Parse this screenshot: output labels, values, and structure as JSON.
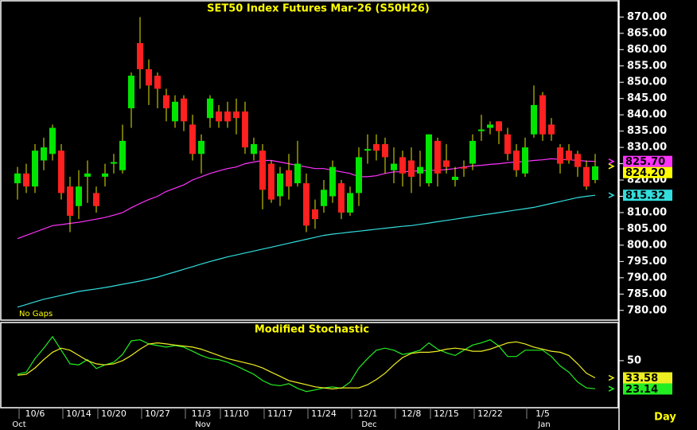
{
  "chart_data": [
    {
      "type": "candlestick",
      "title": "SET50 Index Futures Mar-26 (S50H26)",
      "annotation": "No Gaps",
      "categories": [
        null,
        null,
        "10/6",
        null,
        null,
        null,
        null,
        "10/14",
        null,
        null,
        null,
        "10/20",
        null,
        null,
        null,
        null,
        "10/27",
        null,
        null,
        null,
        null,
        "11/3",
        null,
        null,
        null,
        "11/10",
        null,
        null,
        null,
        null,
        "11/17",
        null,
        null,
        null,
        null,
        "11/24",
        null,
        null,
        null,
        null,
        "12/1",
        null,
        null,
        null,
        null,
        "12/8",
        null,
        null,
        null,
        "12/15",
        null,
        null,
        null,
        null,
        "12/22",
        null,
        null,
        null,
        null,
        null,
        "1/5",
        null,
        null,
        null,
        null,
        null,
        null
      ],
      "months": [
        "Oct",
        null,
        null,
        null,
        null,
        null,
        null,
        null,
        null,
        null,
        null,
        null,
        null,
        null,
        null,
        null,
        null,
        null,
        null,
        null,
        null,
        "Nov",
        null,
        null,
        null,
        null,
        null,
        null,
        null,
        null,
        null,
        null,
        null,
        null,
        null,
        null,
        null,
        null,
        null,
        null,
        "Dec",
        null,
        null,
        null,
        null,
        null,
        null,
        null,
        null,
        null,
        null,
        null,
        null,
        null,
        null,
        null,
        null,
        null,
        null,
        null,
        "Jan",
        null,
        null,
        null,
        null,
        null,
        null
      ],
      "open": [
        819,
        822,
        818,
        826,
        828,
        829,
        818,
        812,
        821,
        816,
        821,
        825,
        823,
        842,
        862,
        854,
        852,
        846,
        838,
        845,
        837,
        828,
        839,
        841,
        841,
        841,
        841,
        828,
        829,
        825,
        815,
        823,
        819,
        819,
        811,
        812,
        815,
        819,
        810,
        816,
        829,
        831,
        831,
        823,
        827,
        826,
        822,
        819,
        832,
        826,
        820,
        824,
        825,
        835,
        836,
        838,
        834,
        829,
        822,
        834,
        846,
        837,
        830,
        829,
        828,
        824,
        820
      ],
      "high": [
        824,
        825,
        831,
        833,
        837,
        831,
        821,
        823,
        826,
        818,
        825,
        828,
        837,
        853,
        870,
        857,
        853,
        848,
        846,
        846,
        840,
        834,
        846,
        843,
        844,
        845,
        844,
        833,
        831,
        826,
        824,
        828,
        832,
        822,
        814,
        820,
        826,
        820,
        818,
        830,
        834,
        834,
        833,
        830,
        829,
        830,
        829,
        834,
        833,
        831,
        824,
        826,
        834,
        840,
        838,
        838,
        836,
        831,
        833,
        849,
        847,
        839,
        831,
        831,
        829,
        826,
        828
      ],
      "low": [
        814,
        816,
        816,
        823,
        826,
        814,
        804,
        808,
        813,
        810,
        818,
        822,
        822,
        836,
        848,
        843,
        842,
        838,
        836,
        835,
        826,
        822,
        836,
        836,
        836,
        834,
        828,
        826,
        811,
        813,
        812,
        814,
        818,
        804,
        805,
        810,
        813,
        808,
        809,
        812,
        825,
        826,
        822,
        819,
        818,
        816,
        818,
        818,
        818,
        822,
        818,
        821,
        823,
        832,
        834,
        831,
        826,
        821,
        821,
        833,
        832,
        832,
        822,
        825,
        821,
        817,
        819
      ],
      "close": [
        822,
        818,
        829,
        830,
        836,
        816,
        809,
        818,
        822,
        812,
        822,
        825.5,
        832,
        852,
        854,
        849,
        848,
        842,
        844,
        838,
        828,
        832,
        845,
        838,
        838,
        839,
        830,
        831,
        817,
        814,
        822,
        818,
        825,
        806,
        808,
        817,
        824,
        810,
        816,
        827,
        829.5,
        829,
        827,
        825,
        822,
        821,
        824,
        834,
        822,
        824,
        821,
        823.5,
        832,
        835.5,
        837,
        835,
        828,
        823,
        830,
        843,
        834,
        834,
        825,
        826,
        824,
        818,
        824.2
      ],
      "last_label": "824.20",
      "last_label_color": "#ffff00",
      "up_color": "#00e600",
      "down_color": "#ff2020",
      "wick_color": "#e6e600",
      "series": [
        {
          "color": "#ff33ff",
          "last_label": "825.70",
          "values": [
            802,
            803,
            804,
            805,
            806,
            806.3,
            806.7,
            807,
            807.5,
            808,
            808.5,
            809.2,
            810,
            811.5,
            812.8,
            814,
            815,
            816.5,
            817.5,
            818.5,
            820,
            821,
            822,
            822.8,
            823.5,
            824,
            825,
            825.5,
            826,
            826,
            825.5,
            825,
            824.5,
            824,
            823.5,
            823.5,
            823,
            822.5,
            822,
            821,
            821,
            821.3,
            822,
            822.5,
            822.5,
            822.7,
            822.8,
            823,
            823,
            823.2,
            823.5,
            824,
            824.3,
            824.5,
            824.8,
            825,
            825.3,
            825.5,
            825.7,
            826,
            826.2,
            826.5,
            826.3,
            826.2,
            826,
            825.8,
            825.7
          ]
        },
        {
          "color": "#33dddd",
          "last_label": "815.32",
          "values": [
            781,
            781.8,
            782.6,
            783.4,
            784,
            784.6,
            785.2,
            785.8,
            786.2,
            786.6,
            787,
            787.5,
            788,
            788.5,
            789,
            789.6,
            790.2,
            791,
            791.8,
            792.6,
            793.4,
            794.2,
            795,
            795.7,
            796.4,
            797,
            797.6,
            798.2,
            798.8,
            799.4,
            800,
            800.6,
            801.2,
            801.8,
            802.4,
            803,
            803.4,
            803.7,
            804,
            804.3,
            804.6,
            804.9,
            805.2,
            805.5,
            805.8,
            806,
            806.4,
            806.8,
            807.2,
            807.6,
            808,
            808.4,
            808.8,
            809.2,
            809.6,
            810,
            810.4,
            810.8,
            811.2,
            811.6,
            812.2,
            812.8,
            813.4,
            814,
            814.6,
            815,
            815.32
          ]
        }
      ],
      "ylim": [
        777.5,
        874
      ],
      "yticks": [
        {
          "value": 780,
          "label": "780.00"
        },
        {
          "value": 785,
          "label": "785.00"
        },
        {
          "value": 790,
          "label": "790.00"
        },
        {
          "value": 795,
          "label": "795.00"
        },
        {
          "value": 800,
          "label": "800.00"
        },
        {
          "value": 805,
          "label": "805.00"
        },
        {
          "value": 810,
          "label": "810.00"
        },
        {
          "value": 815,
          "label": "815.00"
        },
        {
          "value": 820,
          "label": "820.00"
        },
        {
          "value": 825,
          "label": "825.00"
        },
        {
          "value": 830,
          "label": "830.00"
        },
        {
          "value": 835,
          "label": "835.00"
        },
        {
          "value": 840,
          "label": "840.00"
        },
        {
          "value": 845,
          "label": "845.00"
        },
        {
          "value": 850,
          "label": "850.00"
        },
        {
          "value": 855,
          "label": "855.00"
        },
        {
          "value": 860,
          "label": "860.00"
        },
        {
          "value": 865,
          "label": "865.00"
        },
        {
          "value": 870,
          "label": "870.00"
        }
      ]
    },
    {
      "type": "line",
      "title": "Modified Stochastic",
      "x_label": "Day",
      "series": [
        {
          "color": "#22ee22",
          "last_label": "23.14",
          "values": [
            37,
            39,
            52,
            62,
            73,
            60,
            47,
            46,
            51,
            42.5,
            46,
            48.5,
            56,
            69,
            70,
            66,
            64.5,
            63,
            64.5,
            63,
            59,
            55,
            52,
            51,
            48.5,
            45,
            41,
            37,
            31,
            27,
            26,
            28,
            23.5,
            20.5,
            22,
            24,
            25,
            23.5,
            29.5,
            43,
            52,
            60,
            62,
            60,
            56,
            57.5,
            60,
            67,
            61,
            57.5,
            55,
            60,
            65,
            67,
            70,
            64,
            54,
            54,
            60,
            60,
            60,
            54,
            45,
            39,
            29.5,
            24,
            23.14
          ]
        },
        {
          "color": "#eeee22",
          "last_label": "33.58",
          "values": [
            36,
            37,
            43,
            51,
            58,
            62,
            60,
            55,
            50,
            47,
            46,
            47,
            50,
            55,
            61,
            66,
            67,
            66,
            65,
            64,
            63,
            61,
            58,
            55,
            52,
            50,
            48,
            46,
            43,
            39,
            35,
            31,
            29,
            27,
            25,
            24,
            23,
            24,
            24,
            24,
            27,
            32,
            38,
            46,
            53,
            57,
            58,
            58,
            59,
            61,
            62,
            61,
            59,
            59,
            61,
            64,
            67,
            68,
            66,
            63,
            61,
            59,
            58,
            55,
            47,
            38,
            33.58
          ]
        }
      ],
      "ylim": [
        5,
        85
      ],
      "yticks": [
        50
      ]
    }
  ]
}
